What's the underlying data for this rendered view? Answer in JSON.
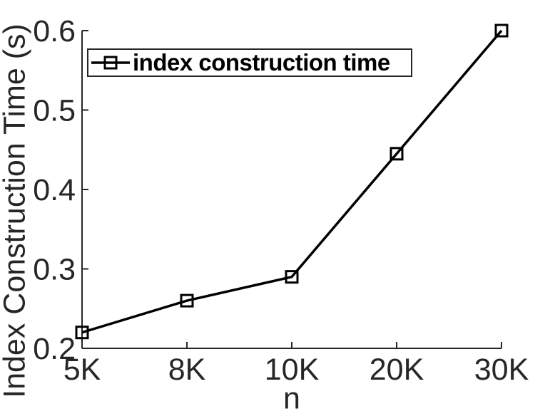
{
  "chart_data": {
    "type": "line",
    "categories": [
      "5K",
      "8K",
      "10K",
      "20K",
      "30K"
    ],
    "series": [
      {
        "name": "index construction time",
        "values": [
          0.22,
          0.26,
          0.29,
          0.445,
          0.6
        ]
      }
    ],
    "title": "",
    "xlabel": "n",
    "ylabel": "Index Construction Time (s)",
    "ylim": [
      0.2,
      0.6
    ],
    "yticks": [
      0.2,
      0.3,
      0.4,
      0.5,
      0.6
    ],
    "ytick_labels": [
      "0.2",
      "0.3",
      "0.4",
      "0.5",
      "0.6"
    ],
    "grid": false,
    "legend_position": "top-left",
    "marker": "open-square",
    "colors": {
      "line": "#000000",
      "marker": "#000000",
      "axis": "#262626",
      "tick_text": "#262626",
      "legend_border": "#262626",
      "background": "#ffffff"
    }
  }
}
